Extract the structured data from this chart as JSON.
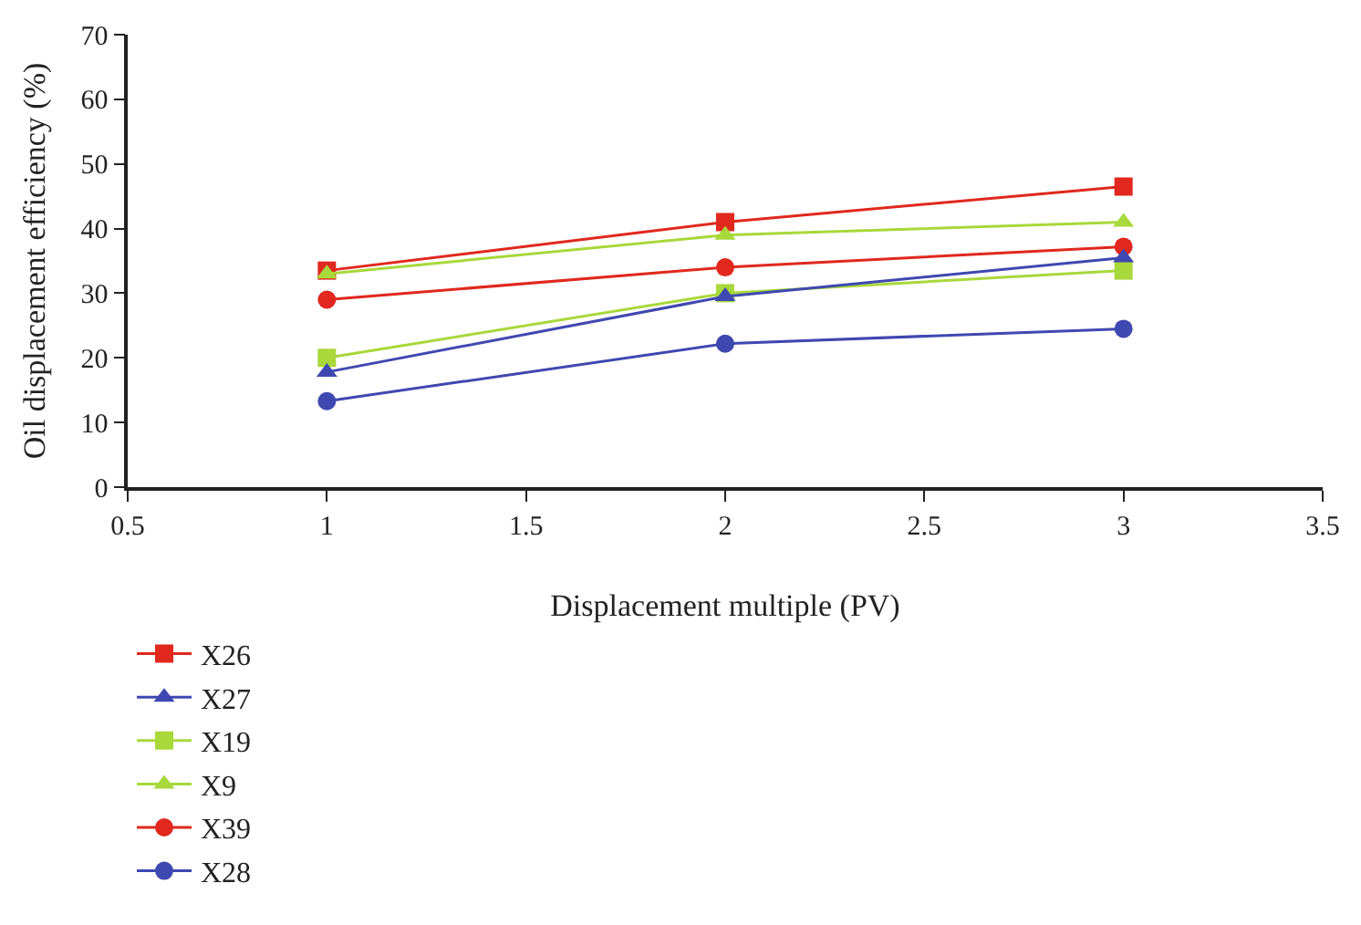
{
  "chart_data": {
    "type": "line",
    "xlabel": "Displacement multiple (PV)",
    "ylabel": "Oil displacement efficiency (%)",
    "x": [
      1,
      2,
      3
    ],
    "series": [
      {
        "name": "X26",
        "color": "#e0281e",
        "marker": "square",
        "values": [
          33.5,
          41,
          46.5
        ]
      },
      {
        "name": "X19",
        "color": "#a8d83a",
        "marker": "square",
        "values": [
          20,
          30,
          33.5
        ]
      },
      {
        "name": "X39",
        "color": "#e0281e",
        "marker": "circle",
        "values": [
          29,
          34,
          37.2
        ]
      },
      {
        "name": "X27",
        "color": "#3f48b0",
        "marker": "triangle",
        "values": [
          17.8,
          29.5,
          35.5
        ]
      },
      {
        "name": "X9",
        "color": "#a8d83a",
        "marker": "triangle",
        "values": [
          33,
          39,
          41
        ]
      },
      {
        "name": "X28",
        "color": "#3f48b0",
        "marker": "circle",
        "values": [
          13.3,
          22.2,
          24.5
        ]
      }
    ],
    "xlim": [
      0.5,
      3.5
    ],
    "xticks": [
      0.5,
      1,
      1.5,
      2,
      2.5,
      3,
      3.5
    ],
    "ylim": [
      0,
      70
    ],
    "yticks": [
      0,
      10,
      20,
      30,
      40,
      50,
      60,
      70
    ],
    "legend": "bottom",
    "line_style": "solid"
  }
}
